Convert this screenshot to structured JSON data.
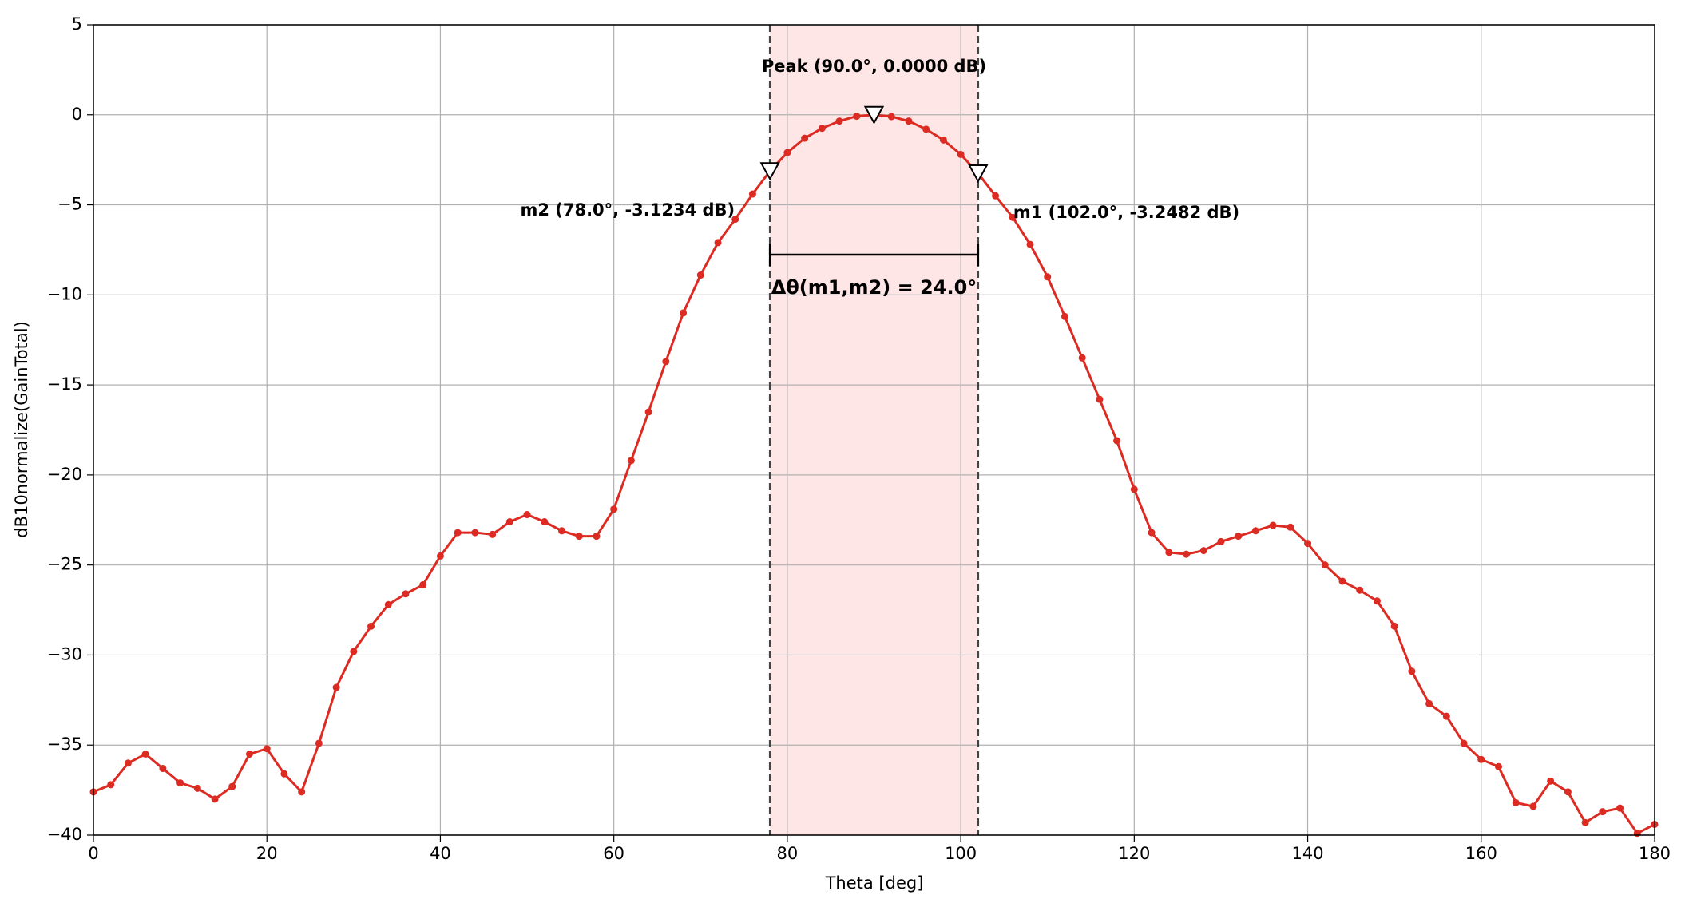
{
  "chart_data": {
    "type": "line",
    "x_label": "Theta [deg]",
    "y_label": "dB10normalize(GainTotal)",
    "x": [
      0,
      2,
      4,
      6,
      8,
      10,
      12,
      14,
      16,
      18,
      20,
      22,
      24,
      26,
      28,
      30,
      32,
      34,
      36,
      38,
      40,
      42,
      44,
      46,
      48,
      50,
      52,
      54,
      56,
      58,
      60,
      62,
      64,
      66,
      68,
      70,
      72,
      74,
      76,
      78,
      80,
      82,
      84,
      86,
      88,
      90,
      92,
      94,
      96,
      98,
      100,
      102,
      104,
      106,
      108,
      110,
      112,
      114,
      116,
      118,
      120,
      122,
      124,
      126,
      128,
      130,
      132,
      134,
      136,
      138,
      140,
      142,
      144,
      146,
      148,
      150,
      152,
      154,
      156,
      158,
      160,
      162,
      164,
      166,
      168,
      170,
      172,
      174,
      176,
      178,
      180
    ],
    "series": [
      {
        "color": "#dc2b22",
        "values": [
          -37.6,
          -37.2,
          -36.0,
          -35.5,
          -36.3,
          -37.1,
          -37.4,
          -38.0,
          -37.3,
          -35.5,
          -35.2,
          -36.6,
          -37.6,
          -34.9,
          -31.8,
          -29.8,
          -28.4,
          -27.2,
          -26.6,
          -26.1,
          -24.5,
          -23.2,
          -23.2,
          -23.3,
          -22.6,
          -22.2,
          -22.6,
          -23.1,
          -23.4,
          -23.4,
          -21.9,
          -19.2,
          -16.5,
          -13.7,
          -11.0,
          -8.9,
          -7.1,
          -5.8,
          -4.4,
          -3.1234,
          -2.1,
          -1.3,
          -0.75,
          -0.35,
          -0.08,
          0,
          -0.1,
          -0.35,
          -0.8,
          -1.4,
          -2.2,
          -3.2482,
          -4.5,
          -5.7,
          -7.2,
          -9.0,
          -11.2,
          -13.5,
          -15.8,
          -18.1,
          -20.8,
          -23.2,
          -24.3,
          -24.4,
          -24.2,
          -23.7,
          -23.4,
          -23.1,
          -22.8,
          -22.9,
          -23.8,
          -25.0,
          -25.9,
          -26.4,
          -27.0,
          -28.4,
          -30.9,
          -32.7,
          -33.4,
          -34.9,
          -35.8,
          -36.2,
          -38.2,
          -38.4,
          -37.0,
          -37.6,
          -39.3,
          -38.7,
          -38.5,
          -39.9,
          -39.4
        ]
      }
    ],
    "markers": [
      {
        "x": 90,
        "y": 0,
        "label": "Peak (90.0°, 0.0000 dB)"
      },
      {
        "x": 78,
        "y": -3.1234,
        "label": "m2 (78.0°, -3.1234 dB)"
      },
      {
        "x": 102,
        "y": -3.2482,
        "label": "m1 (102.0°, -3.2482 dB)"
      }
    ],
    "band": {
      "xlim": [
        78,
        102
      ],
      "color": "#ffe6e6"
    },
    "delta_label": "Δθ(m1,m2) = 24.0°",
    "xlim": [
      0,
      180
    ],
    "xticks": [
      0,
      20,
      40,
      60,
      80,
      100,
      120,
      140,
      160,
      180
    ],
    "ylim": [
      -40,
      5
    ],
    "yticks": [
      5,
      0,
      {
        "value": -5,
        "label": "−5"
      },
      {
        "value": -10,
        "label": "−10"
      },
      {
        "value": -15,
        "label": "−15"
      },
      {
        "value": -20,
        "label": "−20"
      },
      {
        "value": -25,
        "label": "−25"
      },
      {
        "value": -30,
        "label": "−30"
      },
      {
        "value": -35,
        "label": "−35"
      },
      {
        "value": -40,
        "label": "−40"
      }
    ],
    "grid": true
  }
}
